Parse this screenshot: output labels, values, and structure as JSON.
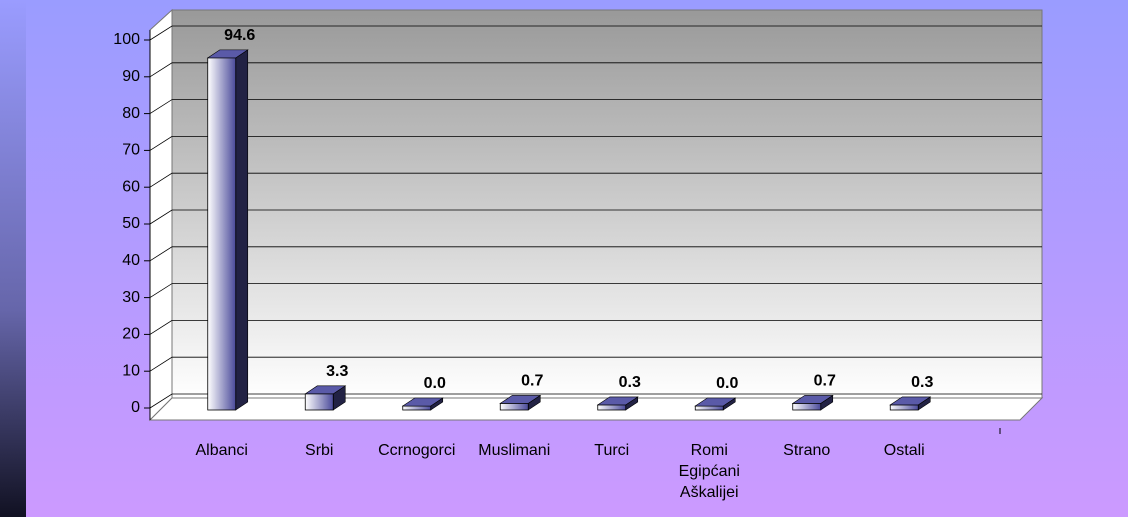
{
  "chart_data": {
    "type": "bar3d",
    "categories": [
      "Albanci",
      "Srbi",
      "Ccrnogorci",
      "Muslimani",
      "Turci",
      "Romi Egipćani Aškalijei",
      "Strano",
      "Ostali"
    ],
    "values": [
      94.6,
      3.3,
      0.0,
      0.7,
      0.3,
      0.0,
      0.7,
      0.3
    ],
    "value_labels": [
      "94.6",
      "3.3",
      "0.0",
      "0.7",
      "0.3",
      "0.0",
      "0.7",
      "0.3"
    ],
    "color": "#5a5aa8",
    "ylim": [
      0,
      100
    ],
    "yticks": [
      0,
      10,
      20,
      30,
      40,
      50,
      60,
      70,
      80,
      90,
      100
    ],
    "grid": true
  }
}
